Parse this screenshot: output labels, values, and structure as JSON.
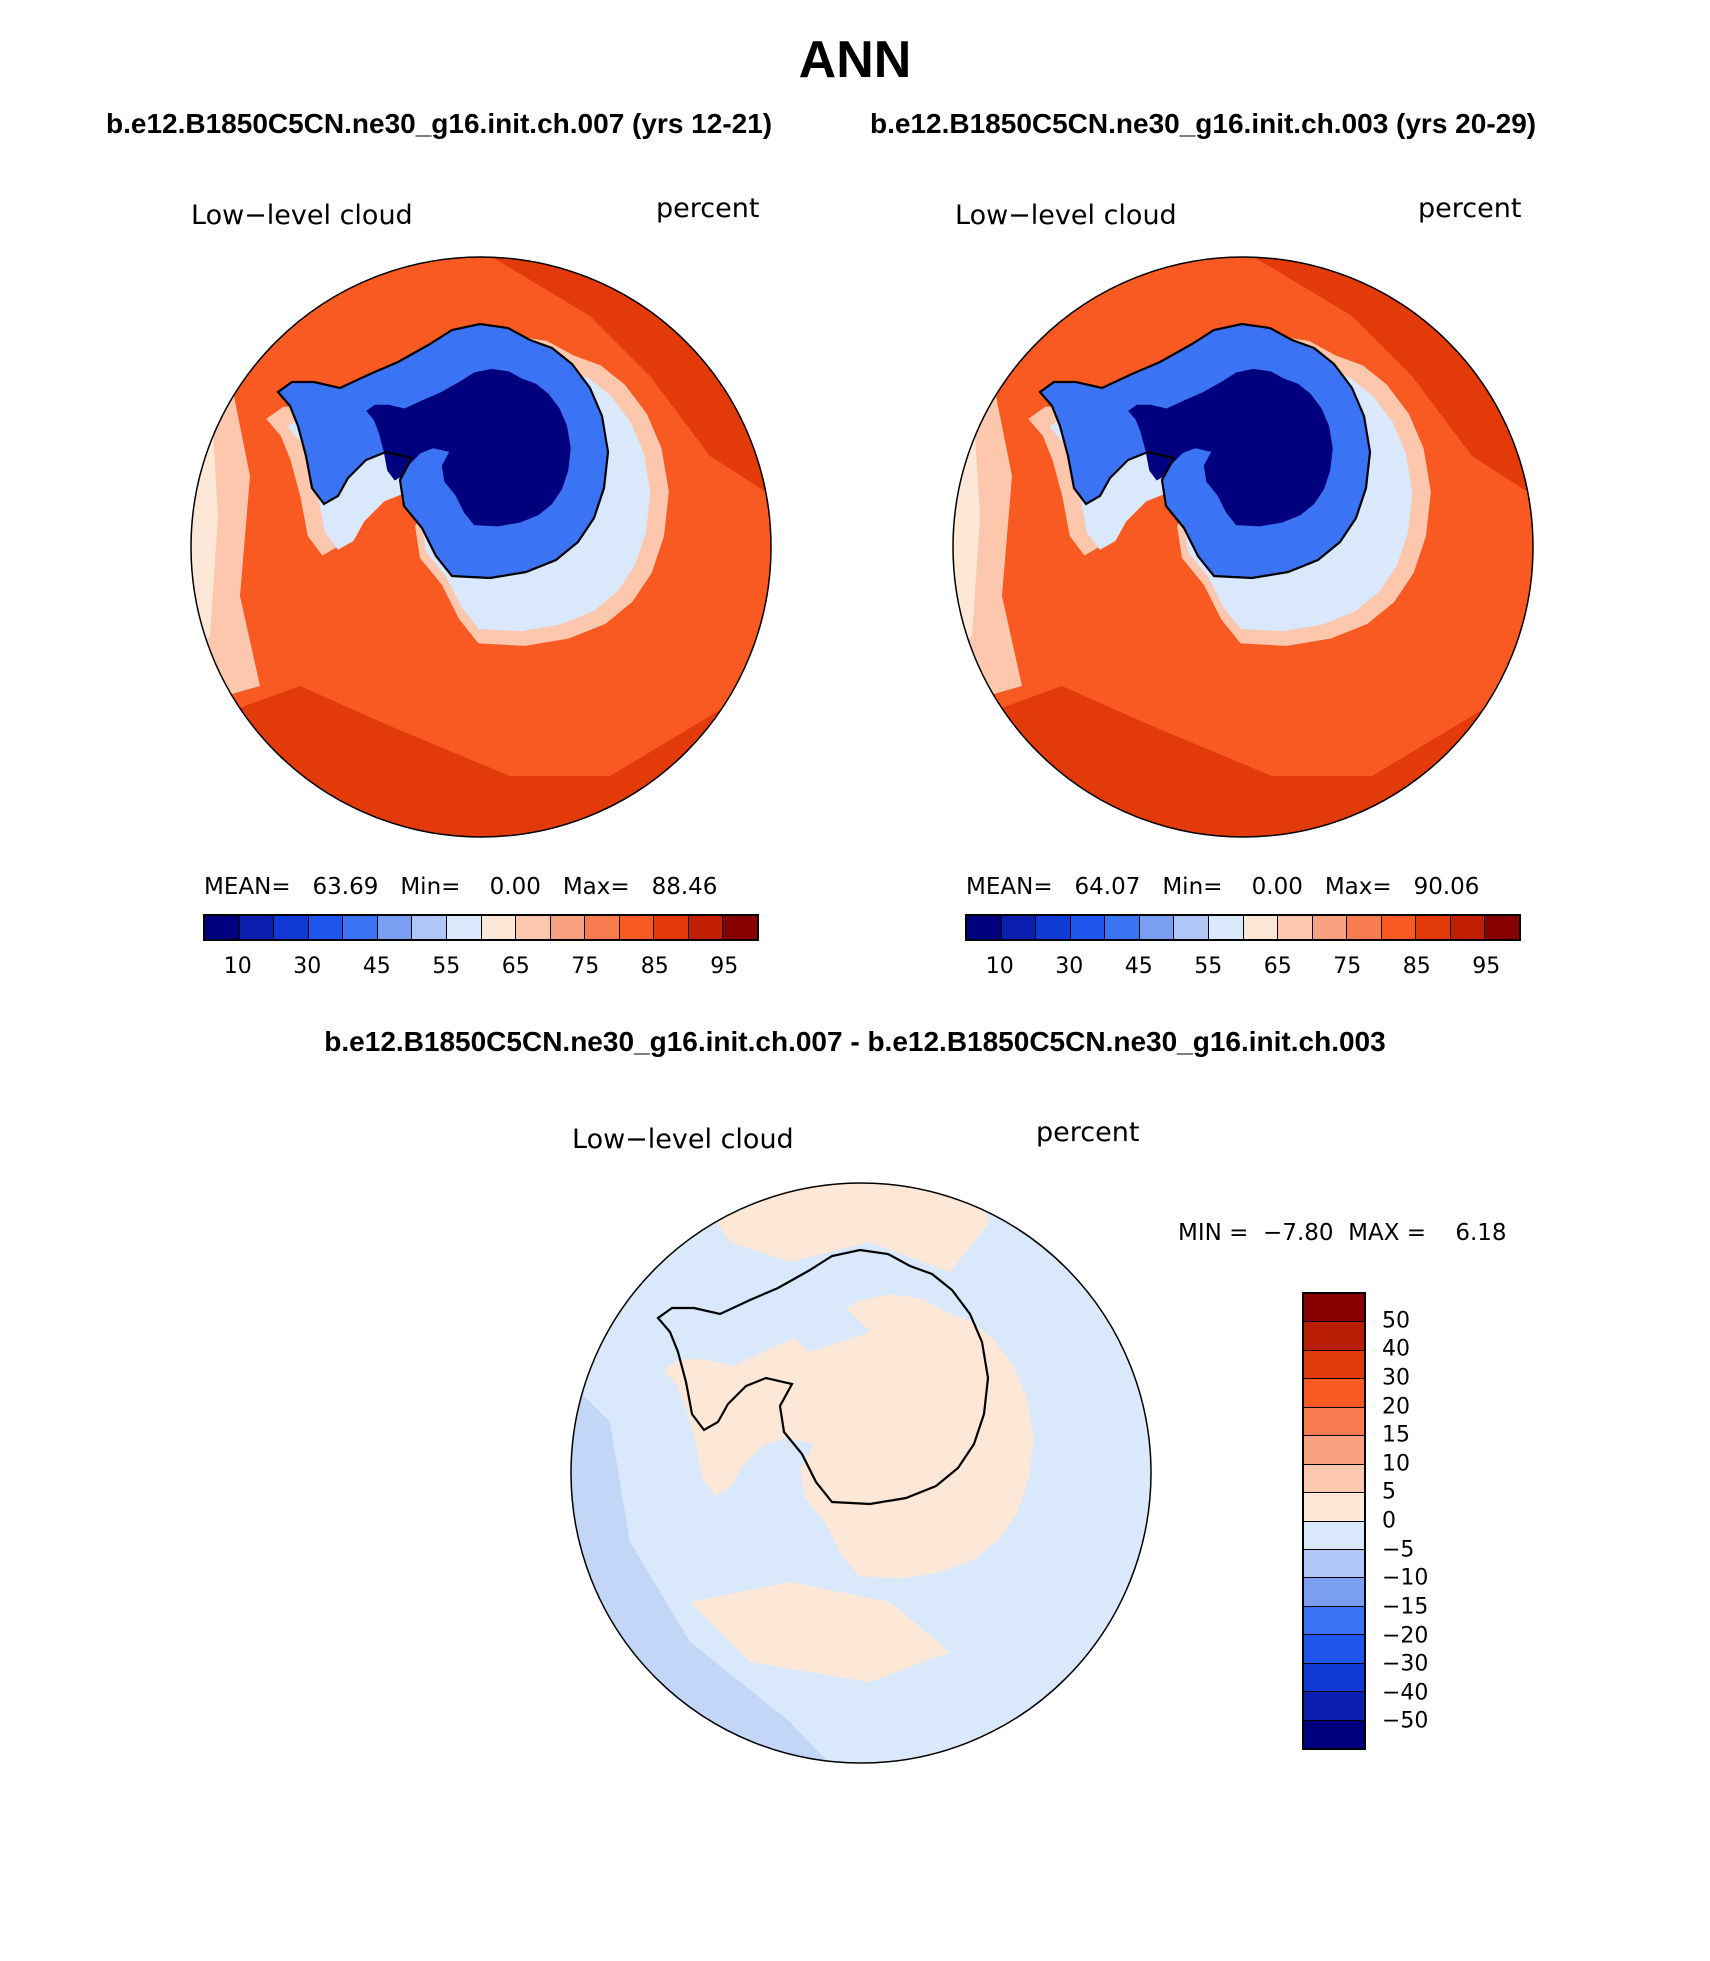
{
  "title": "ANN",
  "panels": [
    {
      "case_title": "b.e12.B1850C5CN.ne30_g16.init.ch.007 (yrs 12-21)",
      "variable": "Low−level cloud",
      "units": "percent",
      "stats": {
        "mean_label": "MEAN=",
        "mean": "63.69",
        "min_label": "Min=",
        "min": "0.00",
        "max_label": "Max=",
        "max": "88.46"
      }
    },
    {
      "case_title": "b.e12.B1850C5CN.ne30_g16.init.ch.003 (yrs 20-29)",
      "variable": "Low−level cloud",
      "units": "percent",
      "stats": {
        "mean_label": "MEAN=",
        "mean": "64.07",
        "min_label": "Min=",
        "min": "0.00",
        "max_label": "Max=",
        "max": "90.06"
      }
    }
  ],
  "colorbar": {
    "colors": [
      "#00007f",
      "#0a1fb0",
      "#0f3ad4",
      "#1e55ec",
      "#3a74f4",
      "#7a9ff2",
      "#afc6f6",
      "#d9e8fb",
      "#fde8d8",
      "#fcc7ad",
      "#f9a281",
      "#f87c4f",
      "#f85a22",
      "#e33a0a",
      "#c21e03",
      "#870000"
    ],
    "labels": [
      "10",
      "30",
      "45",
      "55",
      "65",
      "75",
      "85",
      "95"
    ]
  },
  "diff": {
    "title": "b.e12.B1850C5CN.ne30_g16.init.ch.007 - b.e12.B1850C5CN.ne30_g16.init.ch.003",
    "variable": "Low−level cloud",
    "units": "percent",
    "stats": {
      "min_label": "MIN =",
      "min": "−7.80",
      "max_label": "MAX =",
      "max": "6.18"
    },
    "colors": [
      "#870000",
      "#b91d03",
      "#e03a0a",
      "#f85a22",
      "#f87c4f",
      "#f9a281",
      "#fcc7ad",
      "#fde8d8",
      "#d9e8fb",
      "#afc6f6",
      "#7a9ff2",
      "#3a74f4",
      "#1e55ec",
      "#0f3ad4",
      "#0a1fb0",
      "#00007f"
    ],
    "labels": [
      "50",
      "40",
      "30",
      "20",
      "15",
      "10",
      "5",
      "0",
      "−5",
      "−10",
      "−15",
      "−20",
      "−30",
      "−40",
      "−50"
    ]
  },
  "map_colors": {
    "ocean_low": "#f85a22",
    "ocean_high": "#e33a0a",
    "ice_edge_warm": "#fcc7ad",
    "ice_edge_pale": "#fde8d8",
    "land_light": "#d9e8fb",
    "land_mid": "#3a74f4",
    "land_deep": "#00007f",
    "diff_pos": "#fde8d8",
    "diff_neg": "#d9e8fb",
    "diff_neg2": "#afc6f6"
  }
}
